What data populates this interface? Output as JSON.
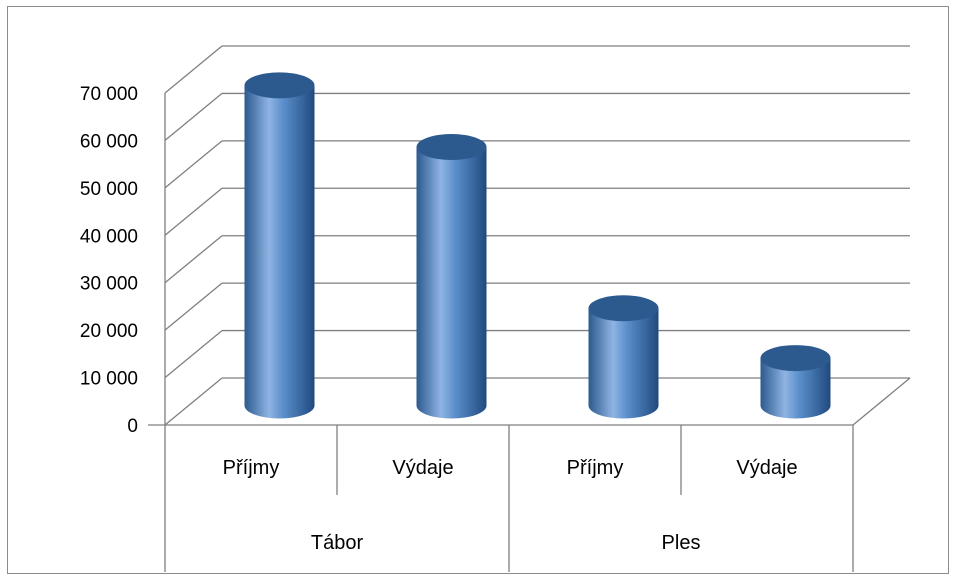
{
  "chart_data": {
    "type": "bar",
    "style": "3d-cylinder",
    "categories": [
      "Příjmy",
      "Výdaje",
      "Příjmy",
      "Výdaje"
    ],
    "groups": [
      {
        "label": "Tábor",
        "categories": [
          "Příjmy",
          "Výdaje"
        ]
      },
      {
        "label": "Ples",
        "categories": [
          "Příjmy",
          "Výdaje"
        ]
      }
    ],
    "values": [
      67500,
      54500,
      20500,
      10000
    ],
    "ylim": [
      0,
      70000
    ],
    "ytick_labels": [
      "0",
      "10 000",
      "20 000",
      "30 000",
      "40 000",
      "50 000",
      "60 000",
      "70 000"
    ],
    "grid": true,
    "legend": "none",
    "colors": {
      "bar": "#4f81bd",
      "bar_dark": "#2c5a8e",
      "bar_light": "#8fb4e3",
      "grid": "#7f7f7f"
    }
  }
}
